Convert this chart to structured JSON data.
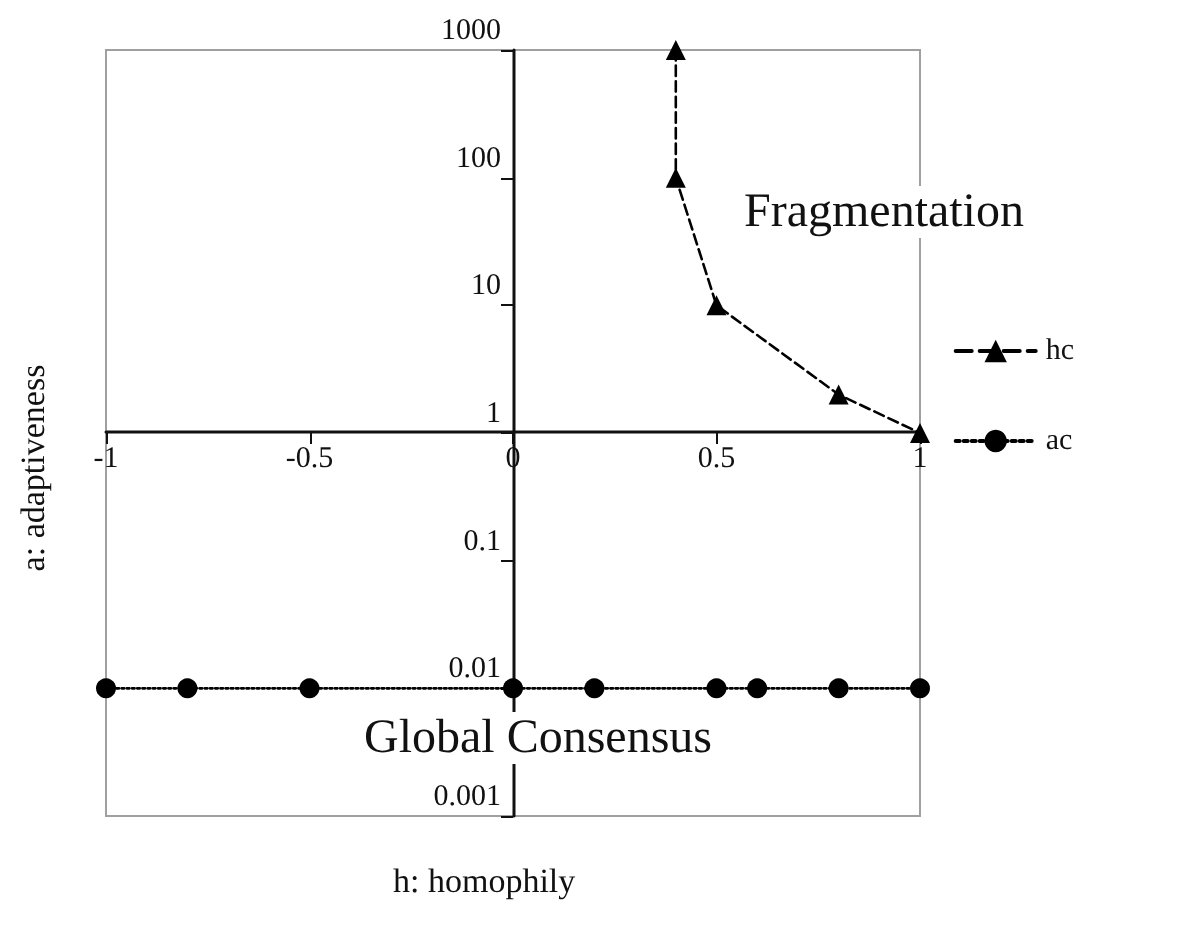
{
  "chart_data": {
    "type": "line",
    "xlabel": "h: homophily",
    "ylabel": "a: adaptiveness",
    "log": "y",
    "xlim": [
      -1,
      1
    ],
    "xticks": [
      -1,
      -0.5,
      0,
      0.5,
      1
    ],
    "ylim": [
      0.001,
      1000
    ],
    "yticks": [
      0.001,
      0.01,
      0.1,
      1,
      10,
      100,
      1000
    ],
    "grid": false,
    "legend": "right",
    "annotations": [
      "Fragmentation",
      "Global Consensus"
    ],
    "series": [
      {
        "name": "hc",
        "color": "#000000",
        "marker": "triangle",
        "line_style": "dashed",
        "x": [
          0.4,
          0.4,
          0.5,
          0.8,
          1
        ],
        "values": [
          1000,
          100,
          10,
          2,
          1
        ]
      },
      {
        "name": "ac",
        "color": "#000000",
        "marker": "circle",
        "line_style": "dotted",
        "x": [
          -1,
          -0.8,
          -0.5,
          0,
          0.2,
          0.5,
          0.6,
          0.8,
          1
        ],
        "values": [
          0.01,
          0.01,
          0.01,
          0.01,
          0.01,
          0.01,
          0.01,
          0.01,
          0.01
        ]
      }
    ]
  }
}
